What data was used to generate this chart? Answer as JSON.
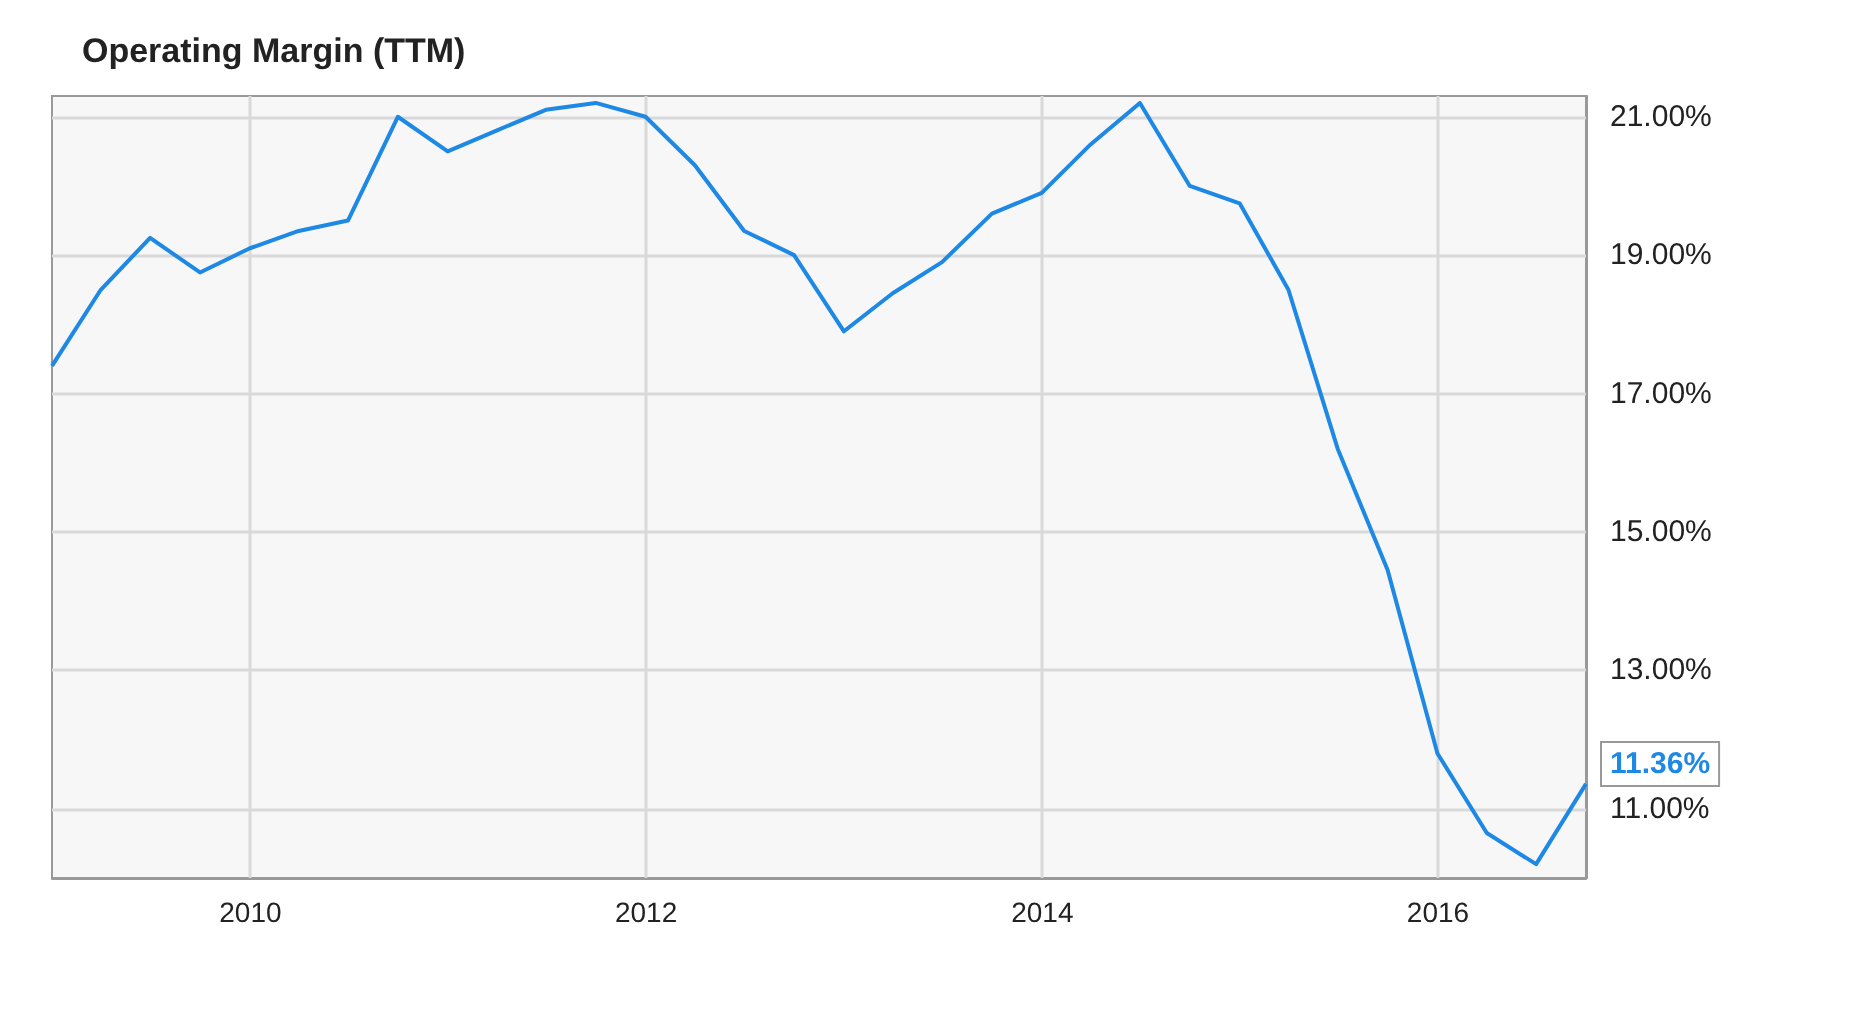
{
  "chart_data": {
    "type": "line",
    "title": "Operating Margin (TTM)",
    "x": [
      "2008-12-31",
      "2009-03-31",
      "2009-06-30",
      "2009-09-30",
      "2009-12-31",
      "2010-03-31",
      "2010-06-30",
      "2010-09-30",
      "2010-12-31",
      "2011-03-31",
      "2011-06-30",
      "2011-09-30",
      "2011-12-31",
      "2012-03-31",
      "2012-06-30",
      "2012-09-30",
      "2012-12-31",
      "2013-03-31",
      "2013-06-30",
      "2013-09-30",
      "2013-12-31",
      "2014-03-31",
      "2014-06-30",
      "2014-09-30",
      "2014-12-31",
      "2015-03-31",
      "2015-06-30",
      "2015-09-30",
      "2015-12-31",
      "2016-03-31",
      "2016-06-30",
      "2016-09-30"
    ],
    "series": [
      {
        "color": "#1e88e5",
        "values": [
          17.4,
          18.5,
          19.25,
          18.75,
          19.1,
          19.35,
          19.5,
          21.0,
          20.5,
          20.8,
          21.1,
          21.2,
          21.0,
          20.3,
          19.35,
          19.0,
          17.9,
          18.45,
          18.9,
          19.6,
          19.9,
          20.6,
          21.2,
          20.0,
          19.75,
          18.5,
          16.2,
          14.45,
          11.8,
          10.65,
          10.2,
          11.36
        ],
        "value_labels": [
          null,
          null,
          null,
          null,
          null,
          null,
          null,
          null,
          null,
          null,
          null,
          null,
          null,
          null,
          null,
          null,
          null,
          null,
          null,
          null,
          null,
          null,
          null,
          null,
          null,
          null,
          null,
          null,
          null,
          null,
          null,
          "11.36%"
        ]
      }
    ],
    "xlim": [
      "2008-12-31",
      "2016-09-30"
    ],
    "xticks": [
      "2010",
      "2012",
      "2014",
      "2016"
    ],
    "ylim": [
      10,
      21.3
    ],
    "yticks": [
      {
        "value": 11,
        "label": "11.00%"
      },
      {
        "value": 13,
        "label": "13.00%"
      },
      {
        "value": 15,
        "label": "15.00%"
      },
      {
        "value": 17,
        "label": "17.00%"
      },
      {
        "value": 19,
        "label": "19.00%"
      },
      {
        "value": 21,
        "label": "21.00%"
      }
    ],
    "grid": true,
    "marker": "none",
    "line_style": "solid"
  }
}
